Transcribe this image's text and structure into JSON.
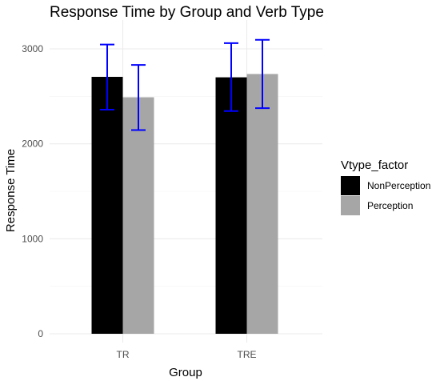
{
  "chart_data": {
    "type": "bar",
    "title": "Response Time by Group and Verb Type",
    "xlabel": "Group",
    "ylabel": "Response Time",
    "categories": [
      "TR",
      "TRE"
    ],
    "yticks": [
      0,
      1000,
      2000,
      3000
    ],
    "ytick_labels": [
      "0",
      "1000",
      "2000",
      "3000"
    ],
    "ylim": [
      0,
      3200
    ],
    "grid": true,
    "legend": {
      "title": "Vtype_factor",
      "position": "right"
    },
    "series": [
      {
        "name": "NonPerception",
        "color": "#000000",
        "values": [
          2705,
          2700
        ],
        "error_low": [
          2360,
          2345
        ],
        "error_high": [
          3045,
          3060
        ]
      },
      {
        "name": "Perception",
        "color": "#a6a6a6",
        "values": [
          2490,
          2735
        ],
        "error_low": [
          2145,
          2375
        ],
        "error_high": [
          2830,
          3095
        ]
      }
    ],
    "error_bar_color": "#0000ff"
  }
}
